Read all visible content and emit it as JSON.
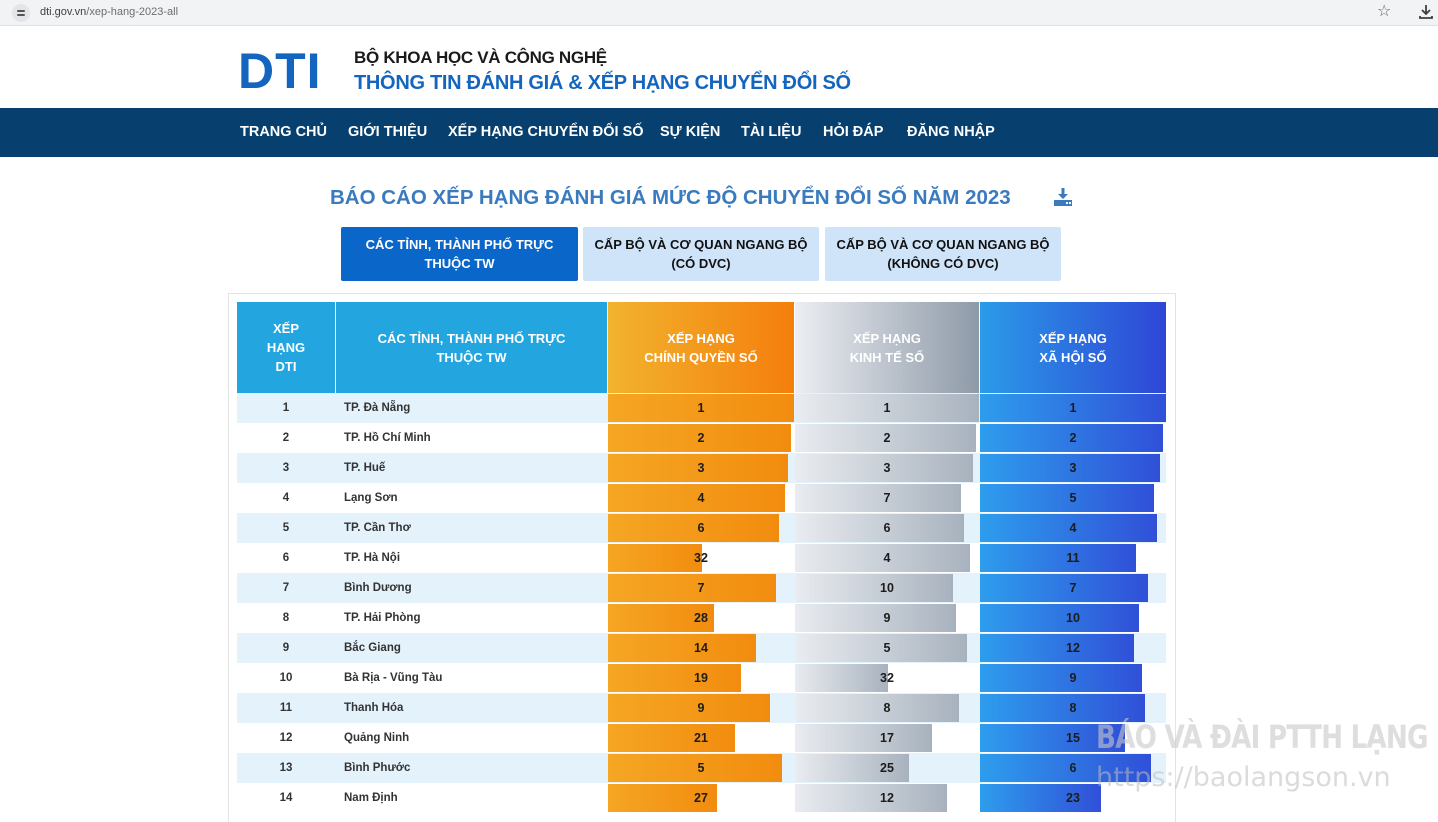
{
  "browser": {
    "url_host": "dti.gov.vn",
    "url_path": "/xep-hang-2023-all"
  },
  "header": {
    "logo": "DTI",
    "line1": "BỘ KHOA HỌC VÀ CÔNG NGHỆ",
    "line2": "THÔNG TIN ĐÁNH GIÁ & XẾP HẠNG CHUYỂN ĐỔI SỐ"
  },
  "nav": {
    "items": [
      "TRANG CHỦ",
      "GIỚI THIỆU",
      "XẾP HẠNG CHUYỂN ĐỔI SỐ",
      "SỰ KIỆN",
      "TÀI LIỆU",
      "HỎI ĐÁP",
      "ĐĂNG NHẬP"
    ]
  },
  "report": {
    "title": "BÁO CÁO XẾP HẠNG ĐÁNH GIÁ MỨC ĐỘ CHUYỂN ĐỔI SỐ NĂM 2023",
    "download_icon": "download-icon"
  },
  "tabs": [
    {
      "line1": "CÁC TỈNH, THÀNH PHỐ TRỰC",
      "line2": "THUỘC TW",
      "active": true
    },
    {
      "line1": "CẤP BỘ VÀ CƠ QUAN NGANG BỘ",
      "line2": "(CÓ DVC)",
      "active": false
    },
    {
      "line1": "CẤP BỘ VÀ CƠ QUAN NGANG BỘ",
      "line2": "(KHÔNG CÓ DVC)",
      "active": false
    }
  ],
  "table": {
    "headers": {
      "rank": [
        "XẾP",
        "HẠNG",
        "DTI"
      ],
      "name": [
        "CÁC TỈNH, THÀNH PHỐ TRỰC",
        "THUỘC TW"
      ],
      "gov": [
        "XẾP HẠNG",
        "CHÍNH QUYỀN SỐ"
      ],
      "eco": [
        "XẾP HẠNG",
        "KINH TẾ SỐ"
      ],
      "soc": [
        "XẾP HẠNG",
        "XÃ HỘI SỐ"
      ]
    },
    "colors": {
      "gov": "#f28c0f",
      "eco": "#a8b2be",
      "soc": "#3050d8"
    },
    "rows": [
      {
        "rank": "1",
        "name": "TP. Đà Nẵng",
        "gov": 1,
        "eco": 1,
        "soc": 1
      },
      {
        "rank": "2",
        "name": "TP. Hồ Chí Minh",
        "gov": 2,
        "eco": 2,
        "soc": 2
      },
      {
        "rank": "3",
        "name": "TP. Huế",
        "gov": 3,
        "eco": 3,
        "soc": 3
      },
      {
        "rank": "4",
        "name": "Lạng Sơn",
        "gov": 4,
        "eco": 7,
        "soc": 5
      },
      {
        "rank": "5",
        "name": "TP. Cần Thơ",
        "gov": 6,
        "eco": 6,
        "soc": 4
      },
      {
        "rank": "6",
        "name": "TP. Hà Nội",
        "gov": 32,
        "eco": 4,
        "soc": 11
      },
      {
        "rank": "7",
        "name": "Bình Dương",
        "gov": 7,
        "eco": 10,
        "soc": 7
      },
      {
        "rank": "8",
        "name": "TP. Hải Phòng",
        "gov": 28,
        "eco": 9,
        "soc": 10
      },
      {
        "rank": "9",
        "name": "Bắc Giang",
        "gov": 14,
        "eco": 5,
        "soc": 12
      },
      {
        "rank": "10",
        "name": "Bà Rịa - Vũng Tàu",
        "gov": 19,
        "eco": 32,
        "soc": 9
      },
      {
        "rank": "11",
        "name": "Thanh Hóa",
        "gov": 9,
        "eco": 8,
        "soc": 8
      },
      {
        "rank": "12",
        "name": "Quảng Ninh",
        "gov": 21,
        "eco": 17,
        "soc": 15
      },
      {
        "rank": "13",
        "name": "Bình Phước",
        "gov": 5,
        "eco": 25,
        "soc": 6
      },
      {
        "rank": "14",
        "name": "Nam Định",
        "gov": 27,
        "eco": 12,
        "soc": 23
      }
    ]
  },
  "watermark": {
    "line1": "BÁO VÀ ĐÀI PTTH LẠNG SƠN",
    "line2": "https://baolangson.vn"
  }
}
